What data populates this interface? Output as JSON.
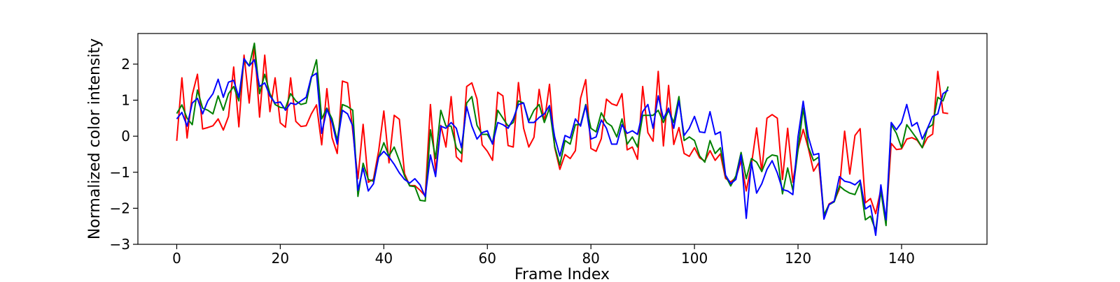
{
  "colors": {
    "background": "#ffffff",
    "axes": "#000000",
    "red_series": "#ff0000",
    "green_series": "#008000",
    "blue_series": "#0000ff"
  },
  "chart_data": {
    "type": "line",
    "title": "",
    "xlabel": "Frame Index",
    "ylabel": "Normalized color intensity",
    "xlim": [
      -7.5,
      156.5
    ],
    "ylim": [
      -3.0,
      2.85
    ],
    "grid": false,
    "legend": "none",
    "x_ticks": [
      0,
      20,
      40,
      60,
      80,
      100,
      120,
      140
    ],
    "y_ticks": [
      -3,
      -2,
      -1,
      0,
      1,
      2
    ],
    "x_tick_labels": [
      "0",
      "20",
      "40",
      "60",
      "80",
      "100",
      "120",
      "140"
    ],
    "y_tick_labels": [
      "−3",
      "−2",
      "−1",
      "0",
      "1",
      "2"
    ],
    "x": [
      0,
      1,
      2,
      3,
      4,
      5,
      6,
      7,
      8,
      9,
      10,
      11,
      12,
      13,
      14,
      15,
      16,
      17,
      18,
      19,
      20,
      21,
      22,
      23,
      24,
      25,
      26,
      27,
      28,
      29,
      30,
      31,
      32,
      33,
      34,
      35,
      36,
      37,
      38,
      39,
      40,
      41,
      42,
      43,
      44,
      45,
      46,
      47,
      48,
      49,
      50,
      51,
      52,
      53,
      54,
      55,
      56,
      57,
      58,
      59,
      60,
      61,
      62,
      63,
      64,
      65,
      66,
      67,
      68,
      69,
      70,
      71,
      72,
      73,
      74,
      75,
      76,
      77,
      78,
      79,
      80,
      81,
      82,
      83,
      84,
      85,
      86,
      87,
      88,
      89,
      90,
      91,
      92,
      93,
      94,
      95,
      96,
      97,
      98,
      99,
      100,
      101,
      102,
      103,
      104,
      105,
      106,
      107,
      108,
      109,
      110,
      111,
      112,
      113,
      114,
      115,
      116,
      117,
      118,
      119,
      120,
      121,
      122,
      123,
      124,
      125,
      126,
      127,
      128,
      129,
      130,
      131,
      132,
      133,
      134,
      135,
      136,
      137,
      138,
      139,
      140,
      141,
      142,
      143,
      144,
      145,
      146,
      147,
      148,
      149
    ],
    "series": [
      {
        "color": "#ff0000",
        "values": [
          -0.13,
          1.62,
          -0.05,
          1.15,
          1.72,
          0.2,
          0.24,
          0.29,
          0.48,
          0.17,
          0.55,
          1.92,
          0.26,
          2.25,
          0.92,
          2.55,
          0.53,
          2.25,
          0.68,
          1.62,
          0.37,
          0.25,
          1.62,
          0.41,
          0.27,
          0.29,
          0.62,
          0.87,
          -0.24,
          1.32,
          -0.04,
          -0.48,
          1.53,
          1.48,
          0.14,
          -1.18,
          0.33,
          -1.28,
          -1.19,
          -0.41,
          0.7,
          -0.74,
          0.58,
          0.47,
          -1.04,
          -1.37,
          -1.37,
          -1.5,
          -1.66,
          0.88,
          -0.98,
          0.3,
          -0.3,
          1.1,
          -0.57,
          -0.71,
          1.38,
          1.48,
          1.03,
          -0.24,
          -0.42,
          -0.67,
          1.22,
          1.12,
          -0.26,
          -0.3,
          1.49,
          0.22,
          -0.3,
          -0.03,
          1.3,
          0.4,
          1.44,
          -0.31,
          -0.92,
          -0.51,
          -0.62,
          -0.4,
          1.05,
          1.57,
          -0.34,
          -0.42,
          -0.07,
          1.03,
          0.9,
          0.85,
          1.18,
          -0.38,
          -0.3,
          -0.64,
          1.38,
          0.1,
          -0.14,
          1.8,
          -0.27,
          1.41,
          -0.23,
          0.24,
          -0.48,
          -0.56,
          -0.32,
          -0.6,
          -0.69,
          -0.4,
          -0.67,
          -0.49,
          -1.17,
          -1.27,
          -1.15,
          -0.69,
          -1.52,
          -0.79,
          0.23,
          -0.98,
          0.5,
          0.6,
          0.5,
          -1.2,
          0.22,
          -1.28,
          -0.37,
          0.19,
          -0.34,
          -0.97,
          -0.74,
          -2.22,
          -1.88,
          -1.8,
          -1.46,
          0.14,
          -1.05,
          0.02,
          0.21,
          -1.85,
          -1.73,
          -2.15,
          -1.47,
          -2.35,
          -0.2,
          -0.37,
          -0.35,
          -0.08,
          -0.04,
          -0.11,
          -0.32,
          -0.04,
          0.06,
          1.8,
          0.65,
          0.63
        ]
      },
      {
        "color": "#008000",
        "values": [
          0.63,
          0.87,
          0.5,
          0.32,
          1.28,
          0.78,
          0.72,
          0.62,
          1.12,
          0.72,
          1.18,
          1.38,
          0.98,
          2.12,
          1.95,
          2.58,
          1.18,
          1.72,
          1.18,
          0.88,
          0.8,
          0.78,
          1.18,
          0.98,
          0.88,
          0.92,
          1.62,
          2.12,
          0.48,
          0.78,
          0.48,
          -0.12,
          0.88,
          0.82,
          0.72,
          -1.67,
          -0.75,
          -1.2,
          -1.25,
          -0.58,
          -0.18,
          -0.55,
          -0.3,
          -0.68,
          -1.1,
          -1.38,
          -1.4,
          -1.78,
          -1.8,
          0.18,
          -0.62,
          0.72,
          0.28,
          0.28,
          -0.32,
          -0.48,
          0.92,
          1.1,
          0.3,
          0.05,
          0.05,
          -0.2,
          0.72,
          0.5,
          0.28,
          0.38,
          0.98,
          0.92,
          0.42,
          0.72,
          0.88,
          0.38,
          0.78,
          -0.28,
          -0.8,
          -0.12,
          -0.22,
          0.32,
          0.32,
          0.88,
          0.22,
          0.12,
          0.65,
          0.38,
          0.28,
          -0.02,
          0.48,
          -0.22,
          -0.02,
          -0.3,
          0.58,
          0.58,
          0.58,
          0.72,
          0.38,
          0.72,
          0.38,
          1.1,
          -0.12,
          -0.02,
          -0.12,
          -0.55,
          -0.72,
          -0.12,
          -0.48,
          -0.32,
          -1.1,
          -1.38,
          -1.1,
          -0.45,
          -1.18,
          -0.62,
          -0.72,
          -0.98,
          -0.62,
          -0.52,
          -0.55,
          -1.6,
          -0.88,
          -1.5,
          -0.38,
          0.78,
          -0.3,
          -0.68,
          -0.58,
          -2.18,
          -1.9,
          -1.82,
          -1.38,
          -1.5,
          -1.58,
          -1.62,
          -1.28,
          -2.32,
          -2.22,
          -2.62,
          -1.52,
          -2.48,
          0.32,
          0.08,
          -0.32,
          0.32,
          0.12,
          -0.08,
          -0.32,
          0.22,
          0.32,
          1.08,
          0.98,
          1.38
        ]
      },
      {
        "color": "#0000ff",
        "values": [
          0.48,
          0.66,
          0.28,
          0.92,
          1.05,
          0.62,
          0.98,
          1.18,
          1.58,
          1.08,
          1.5,
          1.55,
          1.08,
          2.15,
          1.95,
          2.12,
          1.38,
          1.48,
          1.12,
          0.92,
          0.95,
          0.72,
          0.92,
          0.88,
          0.98,
          1.08,
          1.65,
          1.75,
          0.08,
          0.75,
          0.38,
          -0.22,
          0.72,
          0.62,
          0.28,
          -1.5,
          -0.88,
          -1.52,
          -1.32,
          -0.58,
          -0.42,
          -0.58,
          -0.78,
          -1.02,
          -1.2,
          -1.3,
          -1.18,
          -1.35,
          -1.68,
          -0.52,
          -1.12,
          0.28,
          0.22,
          0.38,
          0.22,
          -0.32,
          0.82,
          0.28,
          -0.08,
          0.1,
          0.15,
          -0.22,
          0.38,
          0.32,
          0.22,
          0.48,
          0.88,
          0.92,
          0.38,
          0.38,
          0.52,
          0.62,
          0.85,
          -0.02,
          -0.55,
          0.02,
          -0.05,
          0.48,
          0.28,
          0.85,
          -0.08,
          -0.02,
          0.45,
          0.22,
          -0.22,
          -0.22,
          0.32,
          0.08,
          0.15,
          0.05,
          0.68,
          0.88,
          0.22,
          1.12,
          0.48,
          0.78,
          0.22,
          0.98,
          0.02,
          0.22,
          0.55,
          0.12,
          0.1,
          0.68,
          0.05,
          0.12,
          -1.08,
          -1.32,
          -1.2,
          -0.52,
          -2.28,
          -0.72,
          -1.58,
          -1.32,
          -0.92,
          -0.68,
          -1.02,
          -1.48,
          -1.52,
          -1.62,
          -0.02,
          0.97,
          -0.02,
          -0.52,
          -0.48,
          -2.3,
          -1.9,
          -1.8,
          -1.12,
          -1.25,
          -1.28,
          -1.35,
          -1.22,
          -2.02,
          -1.92,
          -2.75,
          -1.35,
          -2.32,
          0.38,
          0.18,
          0.38,
          0.88,
          0.28,
          0.38,
          -0.08,
          0.22,
          0.55,
          0.62,
          1.18,
          1.28
        ]
      }
    ]
  }
}
